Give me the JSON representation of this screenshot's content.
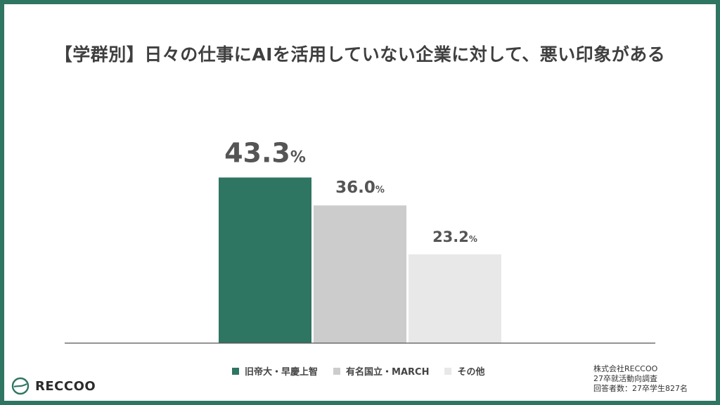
{
  "title": "【学群別】日々の仕事にAIを活用していない企業に対して、悪い印象がある",
  "chart_data": {
    "type": "bar",
    "categories": [
      "旧帝大・早慶上智",
      "有名国立・MARCH",
      "その他"
    ],
    "values": [
      43.3,
      36.0,
      23.2
    ],
    "value_labels": [
      "43.3",
      "36.0",
      "23.2"
    ],
    "unit": "%",
    "colors": [
      "#2e7562",
      "#cccccc",
      "#e8e8e8"
    ],
    "ylim": [
      0,
      50
    ],
    "grid": false,
    "legend_position": "bottom"
  },
  "legend": [
    {
      "label": "旧帝大・早慶上智",
      "color": "#2e7562"
    },
    {
      "label": "有名国立・MARCH",
      "color": "#cccccc"
    },
    {
      "label": "その他",
      "color": "#e8e8e8"
    }
  ],
  "logo": {
    "text": "RECCOO",
    "icon": "reccoo-logo-icon"
  },
  "source": {
    "company": "株式会社RECCOO",
    "survey": "27卒就活動向調査",
    "respondents": "回答者数：27卒学生827名"
  }
}
